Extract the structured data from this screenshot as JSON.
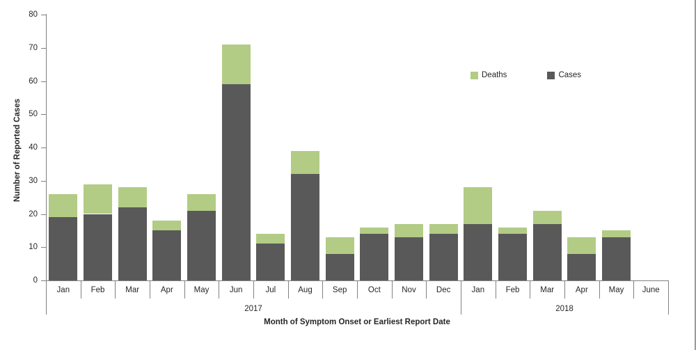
{
  "chart_data": {
    "type": "bar",
    "stacked": true,
    "xlabel": "Month of Symptom Onset or Earliest Report Date",
    "ylabel": "Number of Reported Cases",
    "ylim": [
      0,
      80
    ],
    "ytick_step": 10,
    "ytick_labels": [
      "0",
      "10",
      "20",
      "30",
      "40",
      "50",
      "60",
      "70",
      "80"
    ],
    "grid": false,
    "categories": [
      "Jan",
      "Feb",
      "Mar",
      "Apr",
      "May",
      "Jun",
      "Jul",
      "Aug",
      "Sep",
      "Oct",
      "Nov",
      "Dec",
      "Jan",
      "Feb",
      "Mar",
      "Apr",
      "May",
      "June"
    ],
    "year_groups": [
      {
        "label": "2017",
        "span": 12
      },
      {
        "label": "2018",
        "span": 6
      }
    ],
    "series": [
      {
        "name": "Cases",
        "color": "#595959",
        "values": [
          19,
          20,
          22,
          15,
          21,
          59,
          11,
          32,
          8,
          14,
          13,
          14,
          17,
          14,
          17,
          8,
          13,
          0
        ]
      },
      {
        "name": "Deaths",
        "color": "#b2cc85",
        "values": [
          7,
          9,
          6,
          3,
          5,
          12,
          3,
          7,
          5,
          2,
          4,
          3,
          11,
          2,
          4,
          5,
          2,
          0
        ]
      }
    ],
    "totals": [
      26,
      29,
      28,
      18,
      26,
      71,
      14,
      39,
      13,
      16,
      17,
      17,
      28,
      16,
      21,
      13,
      15,
      0
    ],
    "legend": {
      "position": "top-right",
      "entries": [
        {
          "label": "Deaths",
          "color": "#b2cc85"
        },
        {
          "label": "Cases",
          "color": "#595959"
        }
      ]
    },
    "axis_color": "#808080",
    "text_color": "#262626"
  }
}
